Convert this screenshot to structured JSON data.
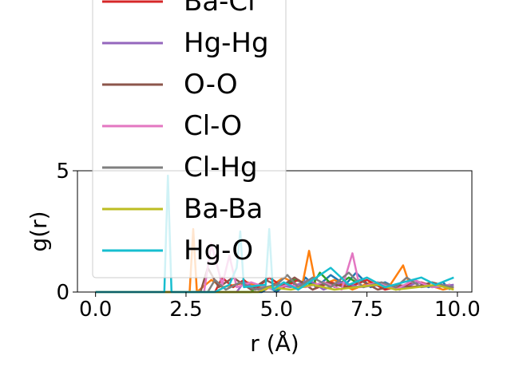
{
  "chart_data": {
    "type": "line",
    "title": "",
    "xlabel": "r (Å)",
    "ylabel": "g(r)",
    "xlim": [
      -0.5,
      10.4
    ],
    "ylim": [
      0,
      5
    ],
    "x_ticks": [
      "0.0",
      "2.5",
      "5.0",
      "7.5",
      "10.0"
    ],
    "y_ticks": [
      "0",
      "5"
    ],
    "grid": false,
    "legend_position": "upper-left, overflowing the top of the plot area",
    "series": [
      {
        "name": "",
        "color": "#1f77b4",
        "x": [
          0,
          4.6,
          4.8,
          5.0,
          5.4,
          5.6,
          5.8,
          6.1,
          6.5,
          6.9,
          7.2,
          7.6,
          8.0,
          8.4,
          8.8,
          9.2,
          9.6,
          9.8
        ],
        "y": [
          0,
          0,
          0.2,
          0,
          0.5,
          0.1,
          0.6,
          0.2,
          0.7,
          0.3,
          0.8,
          0.2,
          0.4,
          0.1,
          0.5,
          0.2,
          0.4,
          0.1
        ]
      },
      {
        "name": "",
        "color": "#ff7f0e",
        "x": [
          0,
          2.6,
          2.7,
          2.8,
          3.2,
          3.5,
          4.2,
          4.7,
          5.2,
          5.7,
          5.9,
          6.1,
          6.6,
          7.1,
          7.6,
          8.1,
          8.5,
          8.7,
          9.2,
          9.6,
          9.9
        ],
        "y": [
          0,
          0,
          2.6,
          0,
          0.5,
          0.2,
          0.4,
          0.1,
          0.6,
          0.2,
          1.7,
          0.2,
          0.5,
          0.1,
          0.4,
          0.2,
          1.1,
          0.2,
          0.3,
          0.1,
          0.2
        ]
      },
      {
        "name": "",
        "color": "#2ca02c",
        "x": [
          0,
          4.3,
          4.5,
          5.0,
          5.5,
          6.0,
          6.2,
          6.6,
          7.0,
          7.4,
          7.8,
          8.3,
          8.8,
          9.3,
          9.8
        ],
        "y": [
          0,
          0,
          0.3,
          0.1,
          0.5,
          0.3,
          0.8,
          0.2,
          0.6,
          0.2,
          0.4,
          0.1,
          0.5,
          0.2,
          0.3
        ]
      },
      {
        "name": "Ba-Cl",
        "color": "#d62728",
        "x": [
          0,
          3.3,
          3.5,
          3.8,
          4.1,
          4.4,
          4.8,
          5.2,
          5.6,
          6.0,
          6.5,
          7.0,
          7.5,
          8.0,
          8.6,
          9.0,
          9.4,
          9.8
        ],
        "y": [
          0,
          0,
          0.6,
          0.2,
          0.5,
          0.1,
          0.6,
          0.2,
          0.5,
          0.1,
          0.4,
          0.2,
          0.5,
          0.1,
          0.3,
          0.4,
          0.2,
          0.3
        ]
      },
      {
        "name": "Hg-Hg",
        "color": "#9467bd",
        "x": [
          0,
          3.9,
          4.1,
          4.5,
          5.0,
          5.4,
          5.9,
          6.3,
          6.8,
          7.3,
          7.9,
          8.4,
          8.9,
          9.4,
          9.9
        ],
        "y": [
          0,
          0,
          0.4,
          0.1,
          0.3,
          0.2,
          0.5,
          0.1,
          0.4,
          0.2,
          0.3,
          0.1,
          0.4,
          0.2,
          0.3
        ]
      },
      {
        "name": "O-O",
        "color": "#8c564b",
        "x": [
          0,
          2.9,
          3.1,
          3.4,
          3.8,
          4.3,
          4.7,
          5.1,
          5.5,
          6.0,
          6.4,
          6.9,
          7.3,
          7.8,
          8.3,
          8.8,
          9.3,
          9.8
        ],
        "y": [
          0,
          0,
          1.0,
          0.2,
          0.6,
          0.1,
          0.5,
          0.2,
          0.6,
          0.1,
          0.4,
          0.2,
          0.5,
          0.1,
          0.3,
          0.2,
          0.4,
          0.2
        ]
      },
      {
        "name": "Cl-O",
        "color": "#e377c2",
        "x": [
          0,
          3.0,
          3.2,
          3.5,
          3.7,
          3.9,
          4.3,
          4.9,
          5.3,
          5.8,
          6.3,
          6.8,
          7.1,
          7.3,
          7.8,
          8.3,
          8.8,
          9.3,
          9.8
        ],
        "y": [
          0,
          0,
          2.0,
          0.3,
          1.5,
          0.2,
          0.4,
          0.1,
          0.3,
          0.2,
          0.4,
          0.1,
          1.6,
          0.2,
          0.4,
          0.1,
          0.5,
          0.2,
          0.3
        ]
      },
      {
        "name": "Cl-Hg",
        "color": "#7f7f7f",
        "x": [
          0,
          3.1,
          3.3,
          3.6,
          4.0,
          4.4,
          5.0,
          5.3,
          5.6,
          6.0,
          6.5,
          7.0,
          7.4,
          7.9,
          8.3,
          8.6,
          9.0,
          9.5,
          9.9
        ],
        "y": [
          0,
          0,
          0.5,
          0.1,
          0.4,
          0.1,
          0.3,
          0.7,
          0.2,
          0.6,
          0.2,
          0.8,
          0.2,
          0.4,
          0.2,
          0.6,
          0.2,
          0.3,
          0.2
        ]
      },
      {
        "name": "Ba-Ba",
        "color": "#bcbd22",
        "x": [
          0,
          4.5,
          4.8,
          5.4,
          6.0,
          6.6,
          7.2,
          7.8,
          8.3,
          8.9,
          9.4,
          9.9
        ],
        "y": [
          0,
          0,
          0.2,
          0.1,
          0.3,
          0.1,
          0.2,
          0.3,
          0.1,
          0.2,
          0.3,
          0.1
        ]
      },
      {
        "name": "Hg-O",
        "color": "#17becf",
        "x": [
          0,
          1.9,
          2.0,
          2.1,
          3.3,
          3.7,
          3.9,
          4.0,
          4.1,
          4.7,
          4.8,
          4.9,
          5.2,
          5.6,
          6.0,
          6.5,
          7.0,
          7.5,
          8.0,
          8.5,
          9.0,
          9.4,
          9.9
        ],
        "y": [
          0,
          0,
          4.8,
          0,
          0,
          0.3,
          1.0,
          2.5,
          0.2,
          0.3,
          2.6,
          0.1,
          0.4,
          0.1,
          0.5,
          1.0,
          0.3,
          0.6,
          0.2,
          0.4,
          0.6,
          0.3,
          0.6
        ]
      }
    ]
  }
}
